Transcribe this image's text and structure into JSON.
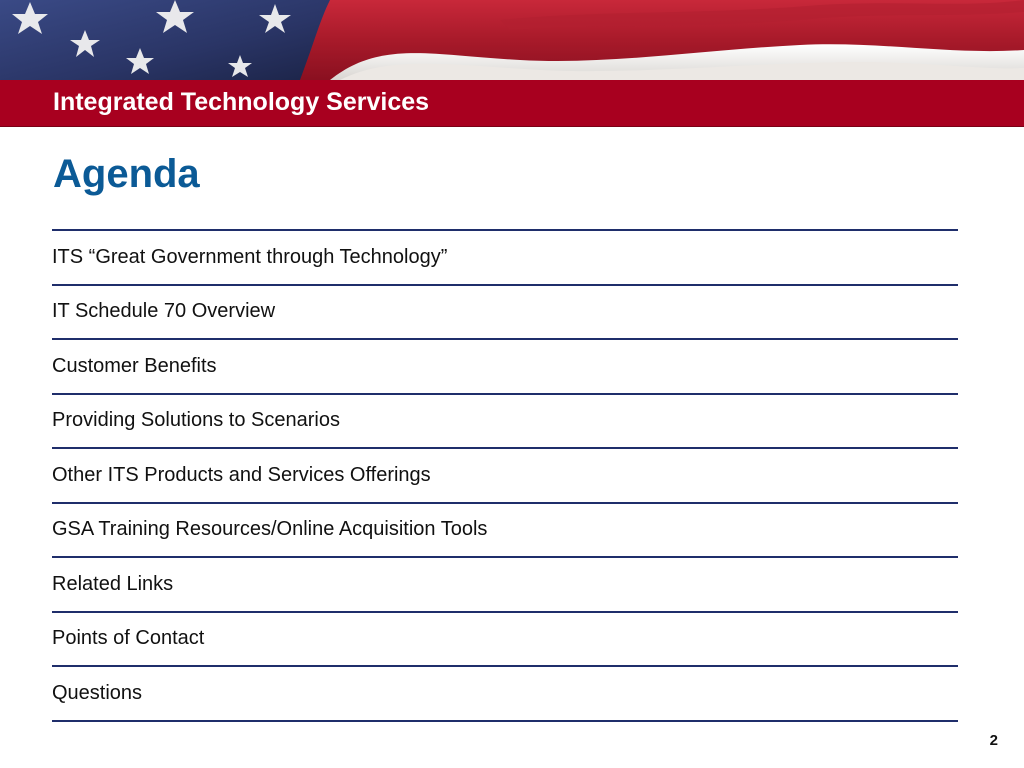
{
  "header": {
    "org_title": "Integrated Technology Services"
  },
  "slide": {
    "heading": "Agenda",
    "page_number": "2"
  },
  "agenda_items": [
    "ITS “Great Government through Technology”",
    "IT Schedule 70 Overview",
    "Customer Benefits",
    "Providing Solutions to Scenarios",
    "Other ITS Products and Services Offerings",
    "GSA Training Resources/Online Acquisition Tools",
    "Related Links",
    "Points of Contact",
    "Questions"
  ],
  "colors": {
    "banner_red": "#a8001f",
    "heading_blue": "#0b5a96",
    "rule_navy": "#1f2e6b",
    "flag_blue": "#2f3f7a"
  }
}
